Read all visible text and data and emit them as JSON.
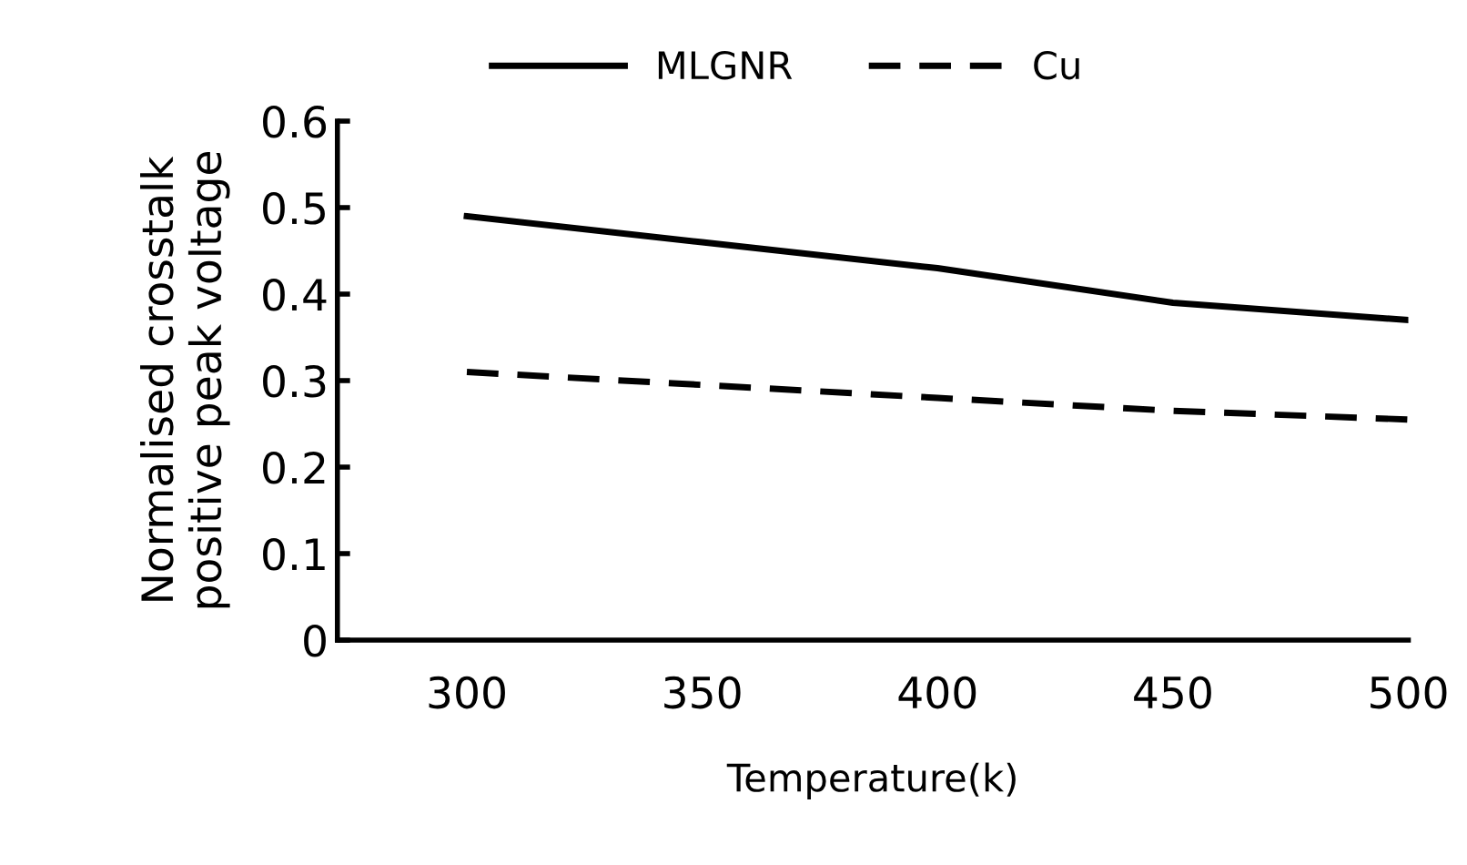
{
  "chart_data": {
    "type": "line",
    "xlabel": "Temperature(k)",
    "ylabel": "Normalised crosstalk\npositive peak voltage",
    "categories": [
      "300",
      "350",
      "400",
      "450",
      "500"
    ],
    "series": [
      {
        "name": "MLGNR",
        "color": "#000000",
        "line_style": "solid",
        "values": [
          0.49,
          0.46,
          0.43,
          0.39,
          0.37
        ]
      },
      {
        "name": "Cu",
        "color": "#000000",
        "line_style": "dashed",
        "values": [
          0.31,
          0.295,
          0.28,
          0.265,
          0.255
        ]
      }
    ],
    "ylim": [
      0,
      0.6
    ],
    "yticks": [
      {
        "value": 0,
        "label": "0"
      },
      0.1,
      0.2,
      0.3,
      0.4,
      0.5,
      0.6
    ],
    "grid": false,
    "legend": "top",
    "marker": "none"
  }
}
